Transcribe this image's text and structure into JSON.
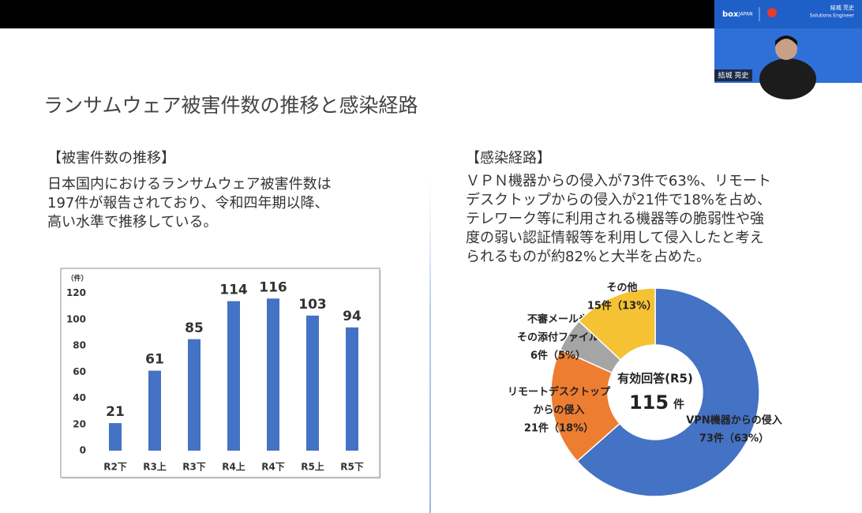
{
  "header": {
    "logo_text": "box",
    "logo_subtext": "JAPAN",
    "presenter_name": "結城 亮史",
    "presenter_title": "Solutions Engineer",
    "name_tag": "結城 亮史"
  },
  "slide": {
    "title": "ランサムウェア被害件数の推移と感染経路",
    "left": {
      "heading": "【被害件数の推移】",
      "lines": [
        "日本国内におけるランサムウェア被害件数は",
        "197件が報告されており、令和四年期以降、",
        "高い水準で推移している。"
      ]
    },
    "right": {
      "heading": "【感染経路】",
      "lines": [
        "ＶＰＮ機器からの侵入が73件で63%、リモート",
        "デスクトップからの侵入が21件で18%を占め、",
        "テレワーク等に利用される機器等の脆弱性や強",
        "度の弱い認証情報等を利用して侵入したと考え",
        "られるものが約82%と大半を占めた。"
      ]
    }
  },
  "chart_data": [
    {
      "type": "bar",
      "y_unit_label": "（件）",
      "categories": [
        "R2下",
        "R3上",
        "R3下",
        "R4上",
        "R4下",
        "R5上",
        "R5下"
      ],
      "values": [
        21,
        61,
        85,
        114,
        116,
        103,
        94
      ],
      "color": "#4472c4",
      "ylim": [
        0,
        130
      ],
      "yticks": [
        0,
        20,
        40,
        60,
        80,
        100,
        120
      ],
      "data_labels": true
    },
    {
      "type": "pie",
      "donut": true,
      "categories": [
        [
          "VPN機器からの侵入"
        ],
        [
          "リモートデスクトップ",
          "からの侵入"
        ],
        [
          "不審メールや",
          "その添付ファイル"
        ],
        [
          "その他"
        ]
      ],
      "values": [
        73,
        21,
        6,
        15
      ],
      "value_labels": [
        "73件（63%）",
        "21件（18%）",
        "6件（5%）",
        "15件（13%）"
      ],
      "colors": [
        "#4472c4",
        "#ed7d31",
        "#a5a5a5",
        "#f5c234"
      ],
      "center_title": "有効回答(R5)",
      "center_value": 115,
      "center_unit": "件"
    }
  ]
}
